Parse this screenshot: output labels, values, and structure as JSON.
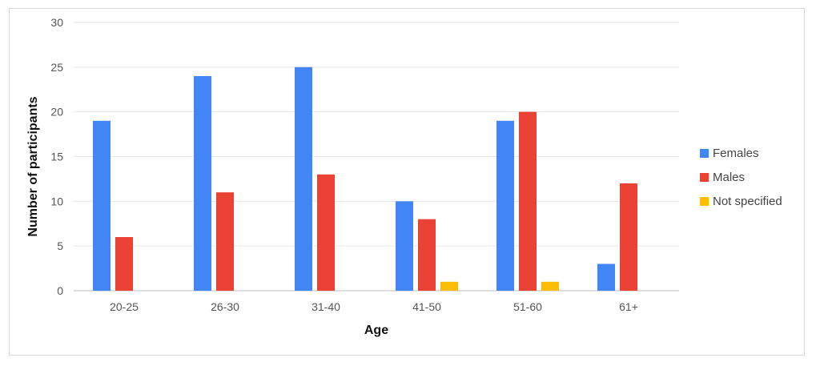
{
  "chart_data": {
    "type": "bar",
    "title": "",
    "xlabel": "Age",
    "ylabel": "Number of participants",
    "categories": [
      "20-25",
      "26-30",
      "31-40",
      "41-50",
      "51-60",
      "61+"
    ],
    "series": [
      {
        "name": "Females",
        "color": "#4285f4",
        "values": [
          19,
          24,
          25,
          10,
          19,
          3
        ]
      },
      {
        "name": "Males",
        "color": "#ea4335",
        "values": [
          6,
          11,
          13,
          8,
          20,
          12
        ]
      },
      {
        "name": "Not specified",
        "color": "#fbbc04",
        "values": [
          0,
          0,
          0,
          1,
          1,
          0
        ]
      }
    ],
    "ylim": [
      0,
      30
    ],
    "yticks": [
      0,
      5,
      10,
      15,
      20,
      25,
      30
    ],
    "grid": true,
    "legend_position": "right"
  }
}
